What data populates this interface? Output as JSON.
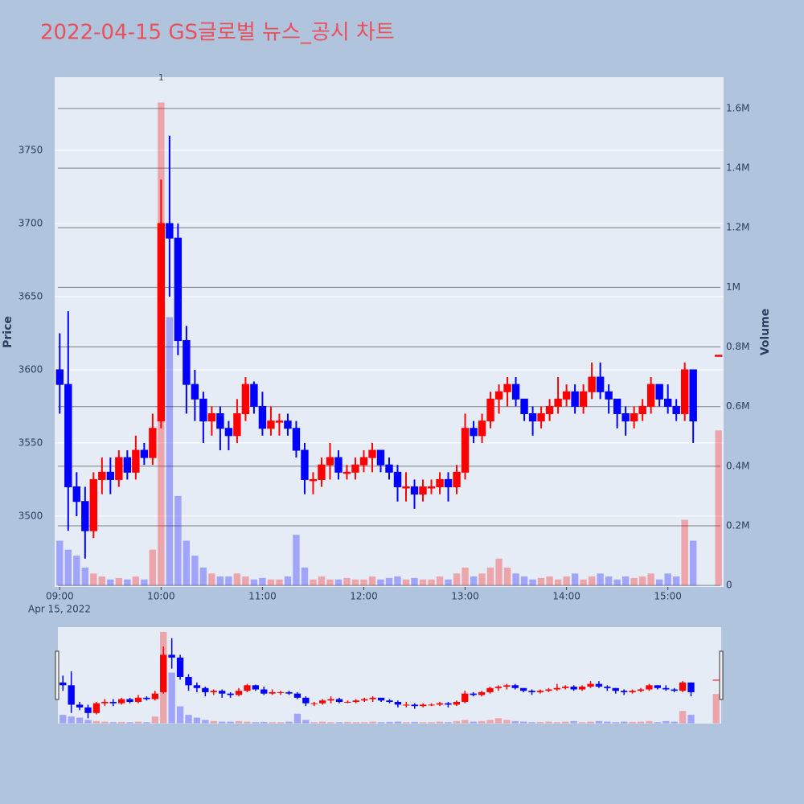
{
  "chart_data": {
    "type": "candlestick",
    "title": "2022-04-15 GS글로벌 뉴스_공시 차트",
    "y_title": "Price",
    "y2_title": "Volume",
    "date_label": "Apr 15, 2022",
    "increasing_color": "#ff0000",
    "decreasing_color": "#0000ff",
    "x": [
      "09:00",
      "09:05",
      "09:10",
      "09:15",
      "09:20",
      "09:25",
      "09:30",
      "09:35",
      "09:40",
      "09:45",
      "09:50",
      "09:55",
      "10:00",
      "10:05",
      "10:10",
      "10:15",
      "10:20",
      "10:25",
      "10:30",
      "10:35",
      "10:40",
      "10:45",
      "10:50",
      "10:55",
      "11:00",
      "11:05",
      "11:10",
      "11:15",
      "11:20",
      "11:25",
      "11:30",
      "11:35",
      "11:40",
      "11:45",
      "11:50",
      "11:55",
      "12:00",
      "12:05",
      "12:10",
      "12:15",
      "12:20",
      "12:25",
      "12:30",
      "12:35",
      "12:40",
      "12:45",
      "12:50",
      "12:55",
      "13:00",
      "13:05",
      "13:10",
      "13:15",
      "13:20",
      "13:25",
      "13:30",
      "13:35",
      "13:40",
      "13:45",
      "13:50",
      "13:55",
      "14:00",
      "14:05",
      "14:10",
      "14:15",
      "14:20",
      "14:25",
      "14:30",
      "14:35",
      "14:40",
      "14:45",
      "14:50",
      "14:55",
      "15:00",
      "15:05",
      "15:10",
      "15:15",
      "15:30"
    ],
    "open": [
      3600,
      3590,
      3520,
      3510,
      3490,
      3525,
      3530,
      3525,
      3540,
      3530,
      3545,
      3540,
      3565,
      3700,
      3690,
      3620,
      3590,
      3580,
      3565,
      3570,
      3560,
      3555,
      3570,
      3590,
      3575,
      3560,
      3565,
      3565,
      3560,
      3545,
      3525,
      3525,
      3535,
      3540,
      3530,
      3530,
      3535,
      3540,
      3545,
      3535,
      3530,
      3520,
      3520,
      3515,
      3520,
      3520,
      3525,
      3520,
      3530,
      3560,
      3555,
      3565,
      3580,
      3585,
      3590,
      3580,
      3570,
      3565,
      3570,
      3575,
      3580,
      3585,
      3575,
      3585,
      3595,
      3585,
      3580,
      3570,
      3565,
      3570,
      3575,
      3590,
      3580,
      3575,
      3570,
      3600,
      3610
    ],
    "high": [
      3625,
      3640,
      3530,
      3520,
      3530,
      3540,
      3540,
      3545,
      3545,
      3555,
      3550,
      3570,
      3730,
      3760,
      3700,
      3630,
      3600,
      3585,
      3575,
      3575,
      3565,
      3580,
      3595,
      3592,
      3585,
      3575,
      3570,
      3570,
      3565,
      3550,
      3530,
      3540,
      3550,
      3545,
      3535,
      3540,
      3545,
      3550,
      3545,
      3540,
      3535,
      3530,
      3525,
      3525,
      3525,
      3530,
      3530,
      3535,
      3570,
      3565,
      3570,
      3585,
      3590,
      3595,
      3595,
      3580,
      3575,
      3575,
      3580,
      3595,
      3590,
      3590,
      3590,
      3605,
      3605,
      3590,
      3580,
      3575,
      3575,
      3580,
      3595,
      3590,
      3590,
      3580,
      3605,
      3600,
      3610
    ],
    "low": [
      3570,
      3490,
      3500,
      3471,
      3485,
      3515,
      3515,
      3520,
      3525,
      3525,
      3535,
      3535,
      3560,
      3650,
      3610,
      3570,
      3565,
      3550,
      3555,
      3545,
      3545,
      3550,
      3565,
      3570,
      3555,
      3555,
      3555,
      3555,
      3540,
      3515,
      3515,
      3520,
      3525,
      3525,
      3525,
      3525,
      3530,
      3530,
      3530,
      3525,
      3510,
      3510,
      3505,
      3510,
      3515,
      3515,
      3510,
      3515,
      3525,
      3550,
      3550,
      3560,
      3570,
      3575,
      3575,
      3565,
      3555,
      3560,
      3565,
      3570,
      3575,
      3570,
      3570,
      3580,
      3580,
      3570,
      3560,
      3555,
      3560,
      3565,
      3570,
      3575,
      3570,
      3565,
      3565,
      3550,
      3610
    ],
    "close": [
      3590,
      3520,
      3510,
      3490,
      3525,
      3530,
      3525,
      3540,
      3530,
      3545,
      3540,
      3560,
      3700,
      3690,
      3620,
      3590,
      3580,
      3565,
      3570,
      3560,
      3555,
      3570,
      3590,
      3575,
      3560,
      3565,
      3565,
      3560,
      3545,
      3525,
      3525,
      3535,
      3540,
      3530,
      3530,
      3535,
      3540,
      3545,
      3535,
      3530,
      3520,
      3520,
      3515,
      3520,
      3520,
      3525,
      3520,
      3530,
      3560,
      3555,
      3565,
      3580,
      3585,
      3590,
      3580,
      3570,
      3565,
      3570,
      3575,
      3580,
      3585,
      3575,
      3585,
      3595,
      3585,
      3580,
      3570,
      3565,
      3570,
      3575,
      3590,
      3580,
      3575,
      3570,
      3600,
      3565,
      3610
    ],
    "volume": [
      150000,
      120000,
      100000,
      60000,
      40000,
      30000,
      20000,
      25000,
      20000,
      30000,
      20000,
      120000,
      1620000,
      900000,
      300000,
      150000,
      100000,
      60000,
      40000,
      30000,
      30000,
      40000,
      30000,
      20000,
      25000,
      20000,
      20000,
      30000,
      170000,
      60000,
      20000,
      30000,
      20000,
      20000,
      25000,
      20000,
      20000,
      30000,
      20000,
      25000,
      30000,
      20000,
      25000,
      20000,
      20000,
      30000,
      20000,
      40000,
      60000,
      30000,
      40000,
      60000,
      90000,
      60000,
      40000,
      30000,
      20000,
      25000,
      30000,
      20000,
      30000,
      40000,
      20000,
      30000,
      40000,
      30000,
      20000,
      30000,
      25000,
      30000,
      40000,
      20000,
      40000,
      30000,
      220000,
      150000,
      520000
    ],
    "xlim": [
      "08:57",
      "15:33"
    ],
    "xticks": [
      "09:00",
      "10:00",
      "11:00",
      "12:00",
      "13:00",
      "14:00",
      "15:00"
    ],
    "ylim": [
      3451.6,
      3800
    ],
    "yticks": [
      3500,
      3550,
      3600,
      3650,
      3700,
      3750
    ],
    "y2lim": [
      -5000,
      1705000
    ],
    "y2ticks": [
      0,
      {
        "value": 200000,
        "label": "0.2M"
      },
      {
        "value": 400000,
        "label": "0.4M"
      },
      {
        "value": 600000,
        "label": "0.6M"
      },
      {
        "value": 800000,
        "label": "0.8M"
      },
      {
        "value": 1000000,
        "label": "1M"
      },
      {
        "value": 1200000,
        "label": "1.2M"
      },
      {
        "value": 1400000,
        "label": "1.4M"
      },
      {
        "value": 1600000,
        "label": "1.6M"
      }
    ],
    "annotations": [
      {
        "x": "10:00",
        "text": "1"
      }
    ],
    "grid": true,
    "rangeslider": true
  }
}
